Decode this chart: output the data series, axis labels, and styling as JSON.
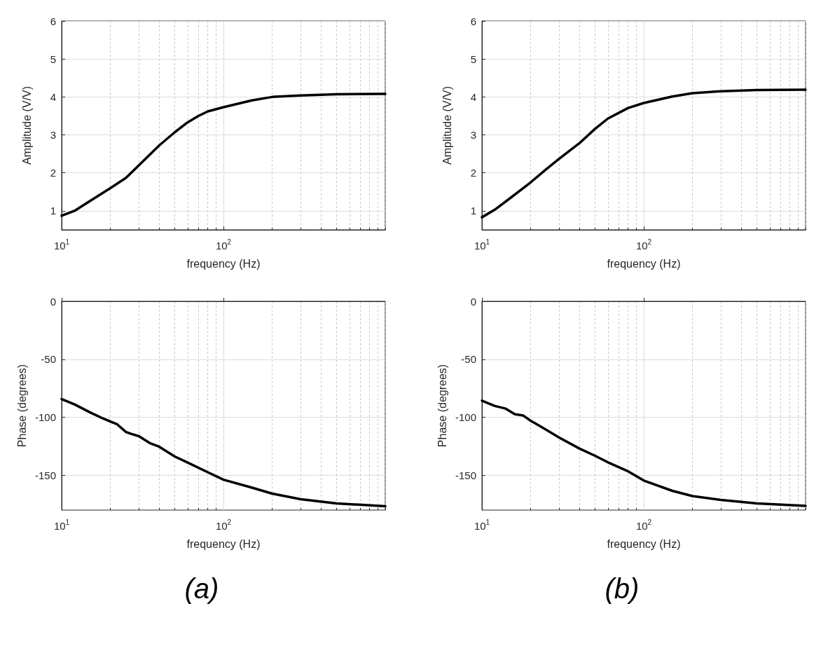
{
  "chart_data": [
    {
      "type": "line",
      "xlabel": "frequency (Hz)",
      "ylabel": "Amplitude (V/V)",
      "log": "x",
      "grid": true,
      "marker": "none",
      "line_style": "solid",
      "xlim": [
        10,
        1000
      ],
      "ylim": [
        0.5,
        6
      ],
      "yticks": [
        1,
        2,
        3,
        4,
        5,
        6
      ],
      "xticks": [
        {
          "value": 10,
          "label": "10$^{1}$"
        },
        {
          "value": 20,
          "label": null
        },
        {
          "value": 30,
          "label": null
        },
        {
          "value": 40,
          "label": null
        },
        {
          "value": 50,
          "label": null
        },
        {
          "value": 60,
          "label": null
        },
        {
          "value": 70,
          "label": null
        },
        {
          "value": 80,
          "label": null
        },
        {
          "value": 90,
          "label": null
        },
        {
          "value": 100,
          "label": "10$^{2}$"
        },
        {
          "value": 200,
          "label": null
        },
        {
          "value": 300,
          "label": null
        },
        {
          "value": 400,
          "label": null
        },
        {
          "value": 500,
          "label": null
        },
        {
          "value": 600,
          "label": null
        },
        {
          "value": 700,
          "label": null
        },
        {
          "value": 800,
          "label": null
        },
        {
          "value": 900,
          "label": null
        },
        {
          "value": 1000,
          "label": null
        }
      ],
      "series": [
        {
          "color": "#000000",
          "x": [
            10,
            12,
            15,
            20,
            25,
            30,
            40,
            50,
            60,
            70,
            80,
            100,
            150,
            200,
            300,
            500,
            1000
          ],
          "values": [
            0.87,
            1.0,
            1.26,
            1.6,
            1.87,
            2.2,
            2.72,
            3.07,
            3.33,
            3.5,
            3.62,
            3.73,
            3.91,
            4.0,
            4.04,
            4.07,
            4.08
          ]
        }
      ]
    },
    {
      "type": "line",
      "xlabel": "frequency (Hz)",
      "ylabel": "Amplitude (V/V)",
      "log": "x",
      "grid": true,
      "marker": "none",
      "line_style": "solid",
      "xlim": [
        10,
        1000
      ],
      "ylim": [
        0.5,
        6
      ],
      "yticks": [
        1,
        2,
        3,
        4,
        5,
        6
      ],
      "xticks": [
        {
          "value": 10,
          "label": "10$^{1}$"
        },
        {
          "value": 20,
          "label": null
        },
        {
          "value": 30,
          "label": null
        },
        {
          "value": 40,
          "label": null
        },
        {
          "value": 50,
          "label": null
        },
        {
          "value": 60,
          "label": null
        },
        {
          "value": 70,
          "label": null
        },
        {
          "value": 80,
          "label": null
        },
        {
          "value": 90,
          "label": null
        },
        {
          "value": 100,
          "label": "10$^{2}$"
        },
        {
          "value": 200,
          "label": null
        },
        {
          "value": 300,
          "label": null
        },
        {
          "value": 400,
          "label": null
        },
        {
          "value": 500,
          "label": null
        },
        {
          "value": 600,
          "label": null
        },
        {
          "value": 700,
          "label": null
        },
        {
          "value": 800,
          "label": null
        },
        {
          "value": 900,
          "label": null
        },
        {
          "value": 1000,
          "label": null
        }
      ],
      "series": [
        {
          "color": "#000000",
          "x": [
            10,
            12,
            15,
            20,
            25,
            30,
            40,
            50,
            60,
            80,
            100,
            150,
            200,
            300,
            500,
            1000
          ],
          "values": [
            0.83,
            1.03,
            1.34,
            1.75,
            2.1,
            2.37,
            2.78,
            3.16,
            3.43,
            3.71,
            3.84,
            4.01,
            4.1,
            4.15,
            4.18,
            4.19
          ]
        }
      ]
    },
    {
      "type": "line",
      "xlabel": "frequency (Hz)",
      "ylabel": "Phase (degrees)",
      "log": "x",
      "grid": true,
      "marker": "none",
      "line_style": "solid",
      "annotations": [
        "(a)"
      ],
      "xlim": [
        10,
        1000
      ],
      "ylim": [
        -180,
        0
      ],
      "yticks": [
        -150,
        -100,
        -50,
        0
      ],
      "xticks": [
        {
          "value": 10,
          "label": "10$^{1}$"
        },
        {
          "value": 20,
          "label": null
        },
        {
          "value": 30,
          "label": null
        },
        {
          "value": 40,
          "label": null
        },
        {
          "value": 50,
          "label": null
        },
        {
          "value": 60,
          "label": null
        },
        {
          "value": 70,
          "label": null
        },
        {
          "value": 80,
          "label": null
        },
        {
          "value": 90,
          "label": null
        },
        {
          "value": 100,
          "label": "10$^{2}$"
        },
        {
          "value": 200,
          "label": null
        },
        {
          "value": 300,
          "label": null
        },
        {
          "value": 400,
          "label": null
        },
        {
          "value": 500,
          "label": null
        },
        {
          "value": 600,
          "label": null
        },
        {
          "value": 700,
          "label": null
        },
        {
          "value": 800,
          "label": null
        },
        {
          "value": 900,
          "label": null
        },
        {
          "value": 1000,
          "label": null
        }
      ],
      "series": [
        {
          "color": "#000000",
          "x": [
            10,
            12,
            15,
            18,
            20,
            22,
            25,
            27,
            30,
            35,
            40,
            50,
            60,
            80,
            100,
            150,
            200,
            300,
            500,
            1000
          ],
          "values": [
            -84.3,
            -88.9,
            -95.8,
            -101,
            -103.6,
            -106,
            -112.7,
            -114.4,
            -116.3,
            -122.2,
            -125.3,
            -133.8,
            -139,
            -147.4,
            -153.8,
            -160.7,
            -165.8,
            -170.6,
            -174.2,
            -176.7
          ]
        }
      ]
    },
    {
      "type": "line",
      "xlabel": "frequency (Hz)",
      "ylabel": "Phase (degrees)",
      "log": "x",
      "grid": true,
      "marker": "none",
      "line_style": "solid",
      "annotations": [
        "(b)"
      ],
      "xlim": [
        10,
        1000
      ],
      "ylim": [
        -180,
        0
      ],
      "yticks": [
        -150,
        -100,
        -50,
        0
      ],
      "xticks": [
        {
          "value": 10,
          "label": "10$^{1}$"
        },
        {
          "value": 20,
          "label": null
        },
        {
          "value": 30,
          "label": null
        },
        {
          "value": 40,
          "label": null
        },
        {
          "value": 50,
          "label": null
        },
        {
          "value": 60,
          "label": null
        },
        {
          "value": 70,
          "label": null
        },
        {
          "value": 80,
          "label": null
        },
        {
          "value": 90,
          "label": null
        },
        {
          "value": 100,
          "label": "10$^{2}$"
        },
        {
          "value": 200,
          "label": null
        },
        {
          "value": 300,
          "label": null
        },
        {
          "value": 400,
          "label": null
        },
        {
          "value": 500,
          "label": null
        },
        {
          "value": 600,
          "label": null
        },
        {
          "value": 700,
          "label": null
        },
        {
          "value": 800,
          "label": null
        },
        {
          "value": 900,
          "label": null
        },
        {
          "value": 1000,
          "label": null
        }
      ],
      "series": [
        {
          "color": "#000000",
          "x": [
            10,
            12,
            14,
            16,
            18,
            20,
            25,
            30,
            40,
            50,
            60,
            80,
            100,
            150,
            200,
            300,
            500,
            1000
          ],
          "values": [
            -85.7,
            -90.2,
            -92.5,
            -97.4,
            -98.5,
            -103,
            -110.8,
            -117.5,
            -126.9,
            -133.2,
            -138.8,
            -146.6,
            -154.5,
            -163.4,
            -167.9,
            -171.3,
            -174.2,
            -176.4
          ]
        }
      ]
    }
  ]
}
